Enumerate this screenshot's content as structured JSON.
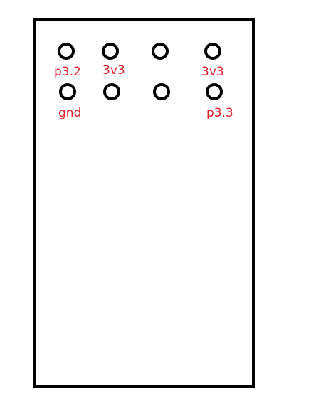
{
  "colors": {
    "board_outline": "#000000",
    "pin_outline": "#000000",
    "label_text": "#e0202a"
  },
  "pins": {
    "top_row": [
      {
        "label": "p3.2"
      },
      {
        "label": "3v3"
      },
      {
        "label": ""
      },
      {
        "label": "3v3"
      }
    ],
    "bottom_row": [
      {
        "label": "gnd"
      },
      {
        "label": ""
      },
      {
        "label": ""
      },
      {
        "label": "p3.3"
      }
    ]
  }
}
